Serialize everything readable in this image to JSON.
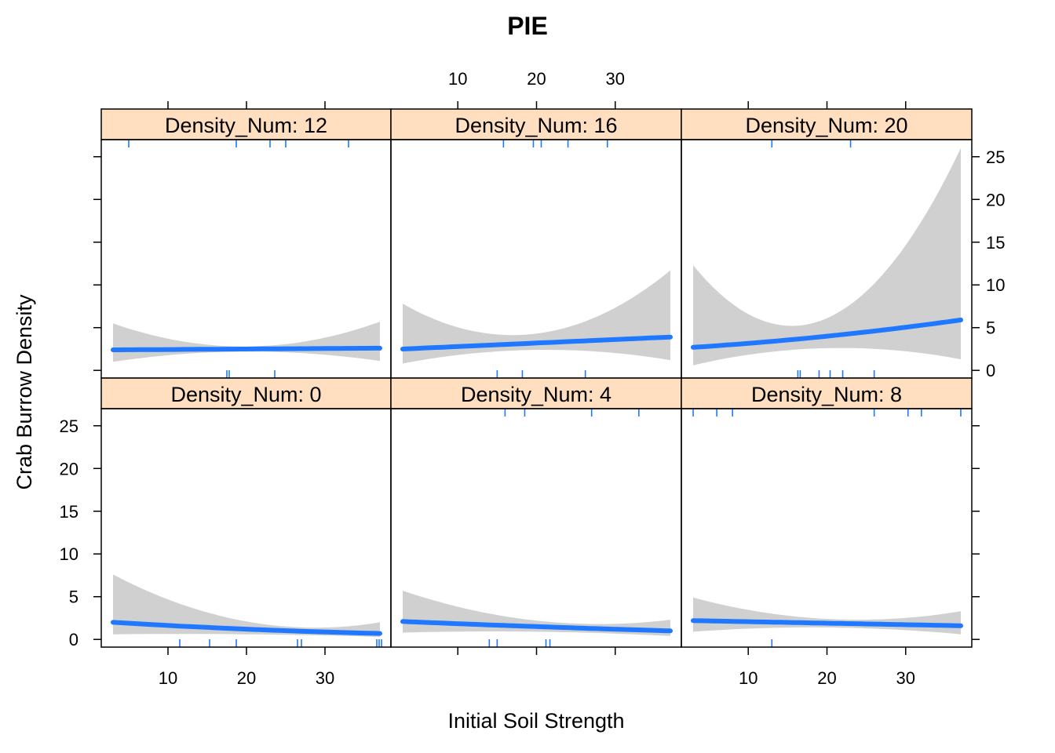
{
  "chart_data": {
    "type": "line",
    "title": "PIE",
    "xlabel": "Initial Soil Strength",
    "ylabel": "Crab Burrow Density",
    "xlim": [
      1.5,
      38.4
    ],
    "ylim": [
      -0.9,
      27
    ],
    "x_ticks": [
      10,
      20,
      30
    ],
    "y_ticks": [
      0,
      5,
      10,
      15,
      20,
      25
    ],
    "strip_prefix": "Density_Num: ",
    "colors": {
      "line": "#1f78ff",
      "band": "#d0d0d0",
      "strip": "#ffdfbf",
      "rug": "#1f78ff"
    },
    "panels": [
      {
        "label": "Density_Num: 12",
        "row": 0,
        "col": 0,
        "fit": {
          "x": [
            3,
            20,
            37
          ],
          "y": [
            2.4,
            2.5,
            2.6
          ]
        },
        "band": {
          "x": [
            3,
            20,
            37
          ],
          "lower": [
            1.0,
            2.2,
            1.1
          ],
          "upper": [
            5.5,
            2.8,
            5.7
          ]
        },
        "rug_top": [
          5,
          18.7,
          23,
          25,
          33
        ],
        "rug_bottom": [
          17.5,
          17.8,
          23.6
        ]
      },
      {
        "label": "Density_Num: 16",
        "row": 0,
        "col": 1,
        "fit": {
          "x": [
            3,
            20,
            37
          ],
          "y": [
            2.5,
            3.2,
            3.9
          ]
        },
        "band": {
          "x": [
            3,
            20,
            37
          ],
          "lower": [
            0.8,
            2.4,
            1.2
          ],
          "upper": [
            7.8,
            4.3,
            11.7
          ]
        },
        "rug_top": [
          15.8,
          19.6,
          20.6,
          24,
          29
        ],
        "rug_bottom": [
          15,
          18.2,
          26.2
        ]
      },
      {
        "label": "Density_Num: 20",
        "row": 0,
        "col": 2,
        "fit": {
          "x": [
            3,
            20,
            37
          ],
          "y": [
            2.7,
            4.0,
            5.9
          ]
        },
        "band": {
          "x": [
            3,
            20,
            37
          ],
          "lower": [
            0.6,
            2.6,
            1.3
          ],
          "upper": [
            12.3,
            6.1,
            26.0
          ]
        },
        "rug_top": [
          13,
          23
        ],
        "rug_bottom": [
          16.3,
          16.6,
          19,
          20.4,
          22,
          26
        ]
      },
      {
        "label": "Density_Num: 0",
        "row": 1,
        "col": 0,
        "fit": {
          "x": [
            3,
            20,
            37
          ],
          "y": [
            2.0,
            1.2,
            0.7
          ]
        },
        "band": {
          "x": [
            3,
            20,
            37
          ],
          "lower": [
            0.6,
            0.6,
            0.3
          ],
          "upper": [
            7.6,
            2.1,
            2.0
          ]
        },
        "rug_top": [],
        "rug_bottom": [
          11.5,
          15.3,
          18.7,
          26.5,
          27,
          36.6,
          36.9,
          37.2
        ]
      },
      {
        "label": "Density_Num: 4",
        "row": 1,
        "col": 1,
        "fit": {
          "x": [
            3,
            20,
            37
          ],
          "y": [
            2.1,
            1.5,
            1.0
          ]
        },
        "band": {
          "x": [
            3,
            20,
            37
          ],
          "lower": [
            0.8,
            0.9,
            0.4
          ],
          "upper": [
            5.7,
            2.2,
            2.3
          ]
        },
        "rug_top": [
          16,
          18.5,
          27,
          33
        ],
        "rug_bottom": [
          14,
          15,
          21.2,
          21.7
        ]
      },
      {
        "label": "Density_Num: 8",
        "row": 1,
        "col": 2,
        "fit": {
          "x": [
            3,
            20,
            37
          ],
          "y": [
            2.2,
            1.9,
            1.6
          ]
        },
        "band": {
          "x": [
            3,
            20,
            37
          ],
          "lower": [
            0.9,
            1.4,
            0.6
          ],
          "upper": [
            4.9,
            2.4,
            3.3
          ]
        },
        "rug_top": [
          3,
          6,
          8,
          26,
          30.3,
          32,
          37
        ],
        "rug_bottom": [
          13
        ]
      }
    ]
  }
}
